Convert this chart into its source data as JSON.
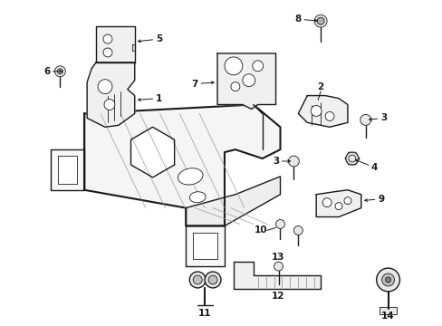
{
  "bg_color": "#ffffff",
  "line_color": "#000000",
  "fig_width": 4.89,
  "fig_height": 3.6,
  "dpi": 100,
  "lw_main": 1.0,
  "lw_thin": 0.6,
  "lw_heavy": 1.5
}
